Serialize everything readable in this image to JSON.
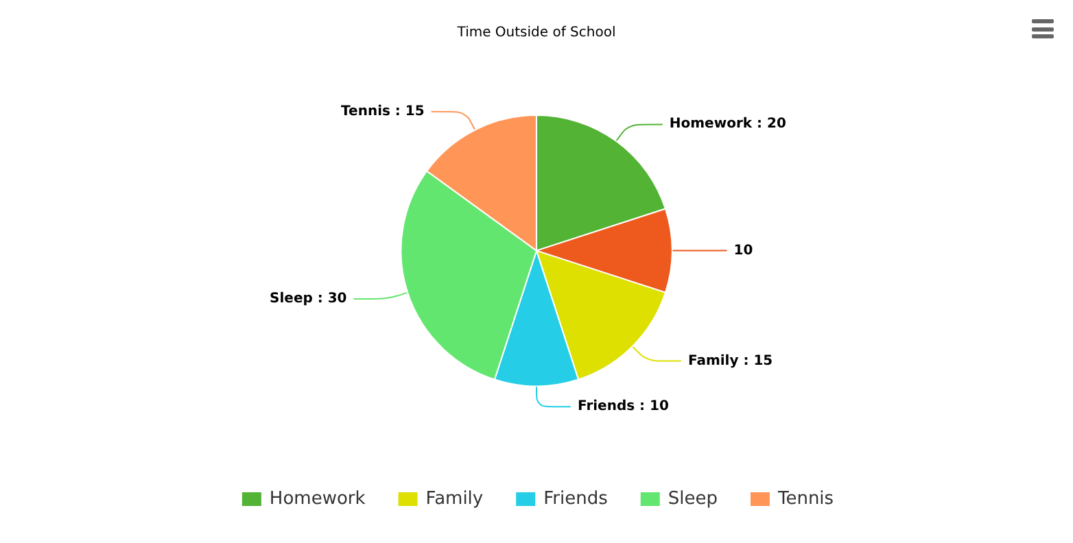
{
  "chart_data": {
    "type": "pie",
    "title": "Time Outside of School",
    "categories": [
      "Homework",
      null,
      "Family",
      "Friends",
      "Sleep",
      "Tennis"
    ],
    "values": [
      20,
      10,
      15,
      10,
      30,
      15
    ],
    "value_labels": [
      "Homework : 20",
      "10",
      "Family : 15",
      "Friends : 10",
      "Sleep : 30",
      "Tennis : 15"
    ],
    "colors": [
      "#52b335",
      "#ee5a1e",
      "#dde000",
      "#25cde6",
      "#63e66f",
      "#ff9657"
    ],
    "legend": "bottom"
  }
}
